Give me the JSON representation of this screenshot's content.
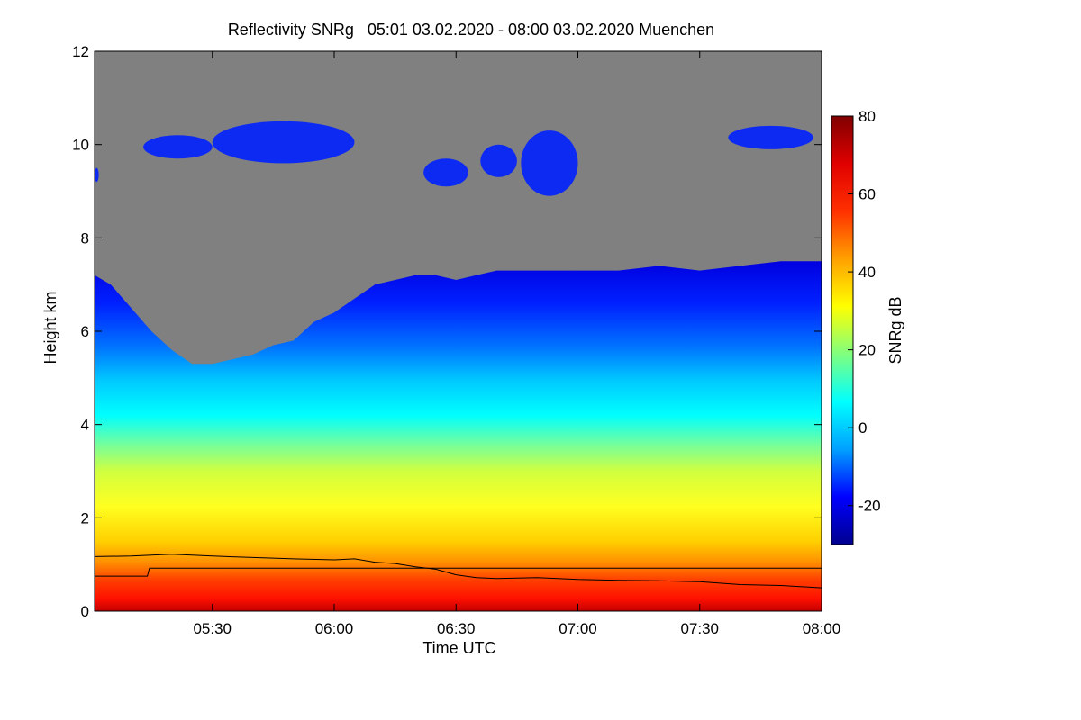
{
  "chart_data": {
    "type": "heatmap",
    "title": "Reflectivity SNRg   05:01 03.02.2020 - 08:00 03.02.2020 Muenchen",
    "xlabel": "Time UTC",
    "ylabel": "Height km",
    "x_unit": "minutes after 05:00 UTC",
    "xlim": [
      1,
      180
    ],
    "ylim": [
      0,
      12
    ],
    "x_ticks": [
      {
        "value": 30,
        "label": "05:30"
      },
      {
        "value": 60,
        "label": "06:00"
      },
      {
        "value": 90,
        "label": "06:30"
      },
      {
        "value": 120,
        "label": "07:00"
      },
      {
        "value": 150,
        "label": "07:30"
      },
      {
        "value": 180,
        "label": "08:00"
      }
    ],
    "y_ticks": [
      {
        "value": 0,
        "label": "0"
      },
      {
        "value": 2,
        "label": "2"
      },
      {
        "value": 4,
        "label": "4"
      },
      {
        "value": 6,
        "label": "6"
      },
      {
        "value": 8,
        "label": "8"
      },
      {
        "value": 10,
        "label": "10"
      },
      {
        "value": 12,
        "label": "12"
      }
    ],
    "colorbar": {
      "label": "SNRg dB",
      "range": [
        -30,
        80
      ],
      "ticks": [
        {
          "value": -20,
          "label": "-20"
        },
        {
          "value": 0,
          "label": "0"
        },
        {
          "value": 20,
          "label": "20"
        },
        {
          "value": 40,
          "label": "40"
        },
        {
          "value": 60,
          "label": "60"
        },
        {
          "value": 80,
          "label": "80"
        }
      ]
    },
    "no_signal_color": "#808080",
    "colormap": [
      "#00008f",
      "#0000ff",
      "#00a0ff",
      "#00ffff",
      "#7fff80",
      "#ffff00",
      "#ffa000",
      "#ff3000",
      "#e00000",
      "#800000"
    ],
    "echo_top_km": [
      [
        1,
        7.2
      ],
      [
        5,
        7.0
      ],
      [
        10,
        6.5
      ],
      [
        15,
        6.0
      ],
      [
        20,
        5.6
      ],
      [
        25,
        5.3
      ],
      [
        30,
        5.3
      ],
      [
        35,
        5.4
      ],
      [
        40,
        5.5
      ],
      [
        45,
        5.7
      ],
      [
        50,
        5.8
      ],
      [
        55,
        6.2
      ],
      [
        60,
        6.4
      ],
      [
        65,
        6.7
      ],
      [
        70,
        7.0
      ],
      [
        75,
        7.1
      ],
      [
        80,
        7.2
      ],
      [
        85,
        7.2
      ],
      [
        90,
        7.1
      ],
      [
        95,
        7.2
      ],
      [
        100,
        7.3
      ],
      [
        105,
        7.3
      ],
      [
        110,
        7.3
      ],
      [
        120,
        7.3
      ],
      [
        130,
        7.3
      ],
      [
        140,
        7.4
      ],
      [
        150,
        7.3
      ],
      [
        160,
        7.4
      ],
      [
        170,
        7.5
      ],
      [
        180,
        7.5
      ]
    ],
    "cirrus_layers": [
      {
        "x": [
          1,
          2
        ],
        "y": [
          9.2,
          9.5
        ]
      },
      {
        "x": [
          13,
          30
        ],
        "y": [
          9.7,
          10.2
        ]
      },
      {
        "x": [
          30,
          65
        ],
        "y": [
          9.6,
          10.5
        ]
      },
      {
        "x": [
          82,
          93
        ],
        "y": [
          9.1,
          9.7
        ]
      },
      {
        "x": [
          96,
          105
        ],
        "y": [
          9.3,
          10.0
        ]
      },
      {
        "x": [
          106,
          120
        ],
        "y": [
          8.9,
          10.3
        ]
      },
      {
        "x": [
          157,
          178
        ],
        "y": [
          9.9,
          10.4
        ]
      }
    ],
    "series": [
      {
        "values": [
          [
            1,
            1.17
          ],
          [
            10,
            1.18
          ],
          [
            20,
            1.22
          ],
          [
            30,
            1.18
          ],
          [
            40,
            1.15
          ],
          [
            50,
            1.12
          ],
          [
            60,
            1.1
          ],
          [
            65,
            1.12
          ],
          [
            70,
            1.05
          ],
          [
            75,
            1.02
          ],
          [
            80,
            0.95
          ],
          [
            85,
            0.9
          ],
          [
            90,
            0.78
          ],
          [
            95,
            0.72
          ],
          [
            100,
            0.7
          ],
          [
            110,
            0.72
          ],
          [
            120,
            0.68
          ],
          [
            130,
            0.66
          ],
          [
            140,
            0.65
          ],
          [
            150,
            0.63
          ],
          [
            160,
            0.57
          ],
          [
            170,
            0.55
          ],
          [
            180,
            0.5
          ]
        ]
      },
      {
        "values": [
          [
            1,
            0.75
          ],
          [
            14,
            0.75
          ],
          [
            14.5,
            0.92
          ],
          [
            180,
            0.92
          ]
        ]
      }
    ]
  }
}
